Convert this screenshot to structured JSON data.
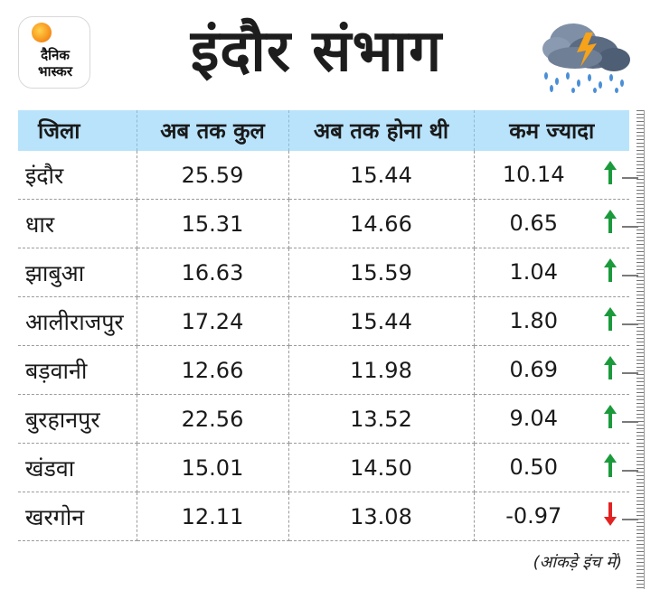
{
  "logo": {
    "line1": "दैनिक",
    "line2": "भास्कर"
  },
  "title": "इंदौर संभाग",
  "weather_icon": "storm-cloud-rain-icon",
  "table": {
    "headers": [
      "जिला",
      "अब तक कुल",
      "अब तक होना थी",
      "कम ज्यादा"
    ],
    "rows": [
      {
        "district": "इंदौर",
        "total": "25.59",
        "expected": "15.44",
        "difference": "10.14",
        "trend": "up"
      },
      {
        "district": "धार",
        "total": "15.31",
        "expected": "14.66",
        "difference": "0.65",
        "trend": "up"
      },
      {
        "district": "झाबुआ",
        "total": "16.63",
        "expected": "15.59",
        "difference": "1.04",
        "trend": "up"
      },
      {
        "district": "आलीराजपुर",
        "total": "17.24",
        "expected": "15.44",
        "difference": "1.80",
        "trend": "up"
      },
      {
        "district": "बड़वानी",
        "total": "12.66",
        "expected": "11.98",
        "difference": "0.69",
        "trend": "up"
      },
      {
        "district": "बुरहानपुर",
        "total": "22.56",
        "expected": "13.52",
        "difference": "9.04",
        "trend": "up"
      },
      {
        "district": "खंडवा",
        "total": "15.01",
        "expected": "14.50",
        "difference": "0.50",
        "trend": "up"
      },
      {
        "district": "खरगोन",
        "total": "12.11",
        "expected": "13.08",
        "difference": "-0.97",
        "trend": "down"
      }
    ]
  },
  "footnote": "(आंकड़े इंच में)",
  "colors": {
    "header_bg": "#b9e3fb",
    "up": "#1b9a3c",
    "down": "#e32222",
    "logo_orange": "#f7941d"
  }
}
